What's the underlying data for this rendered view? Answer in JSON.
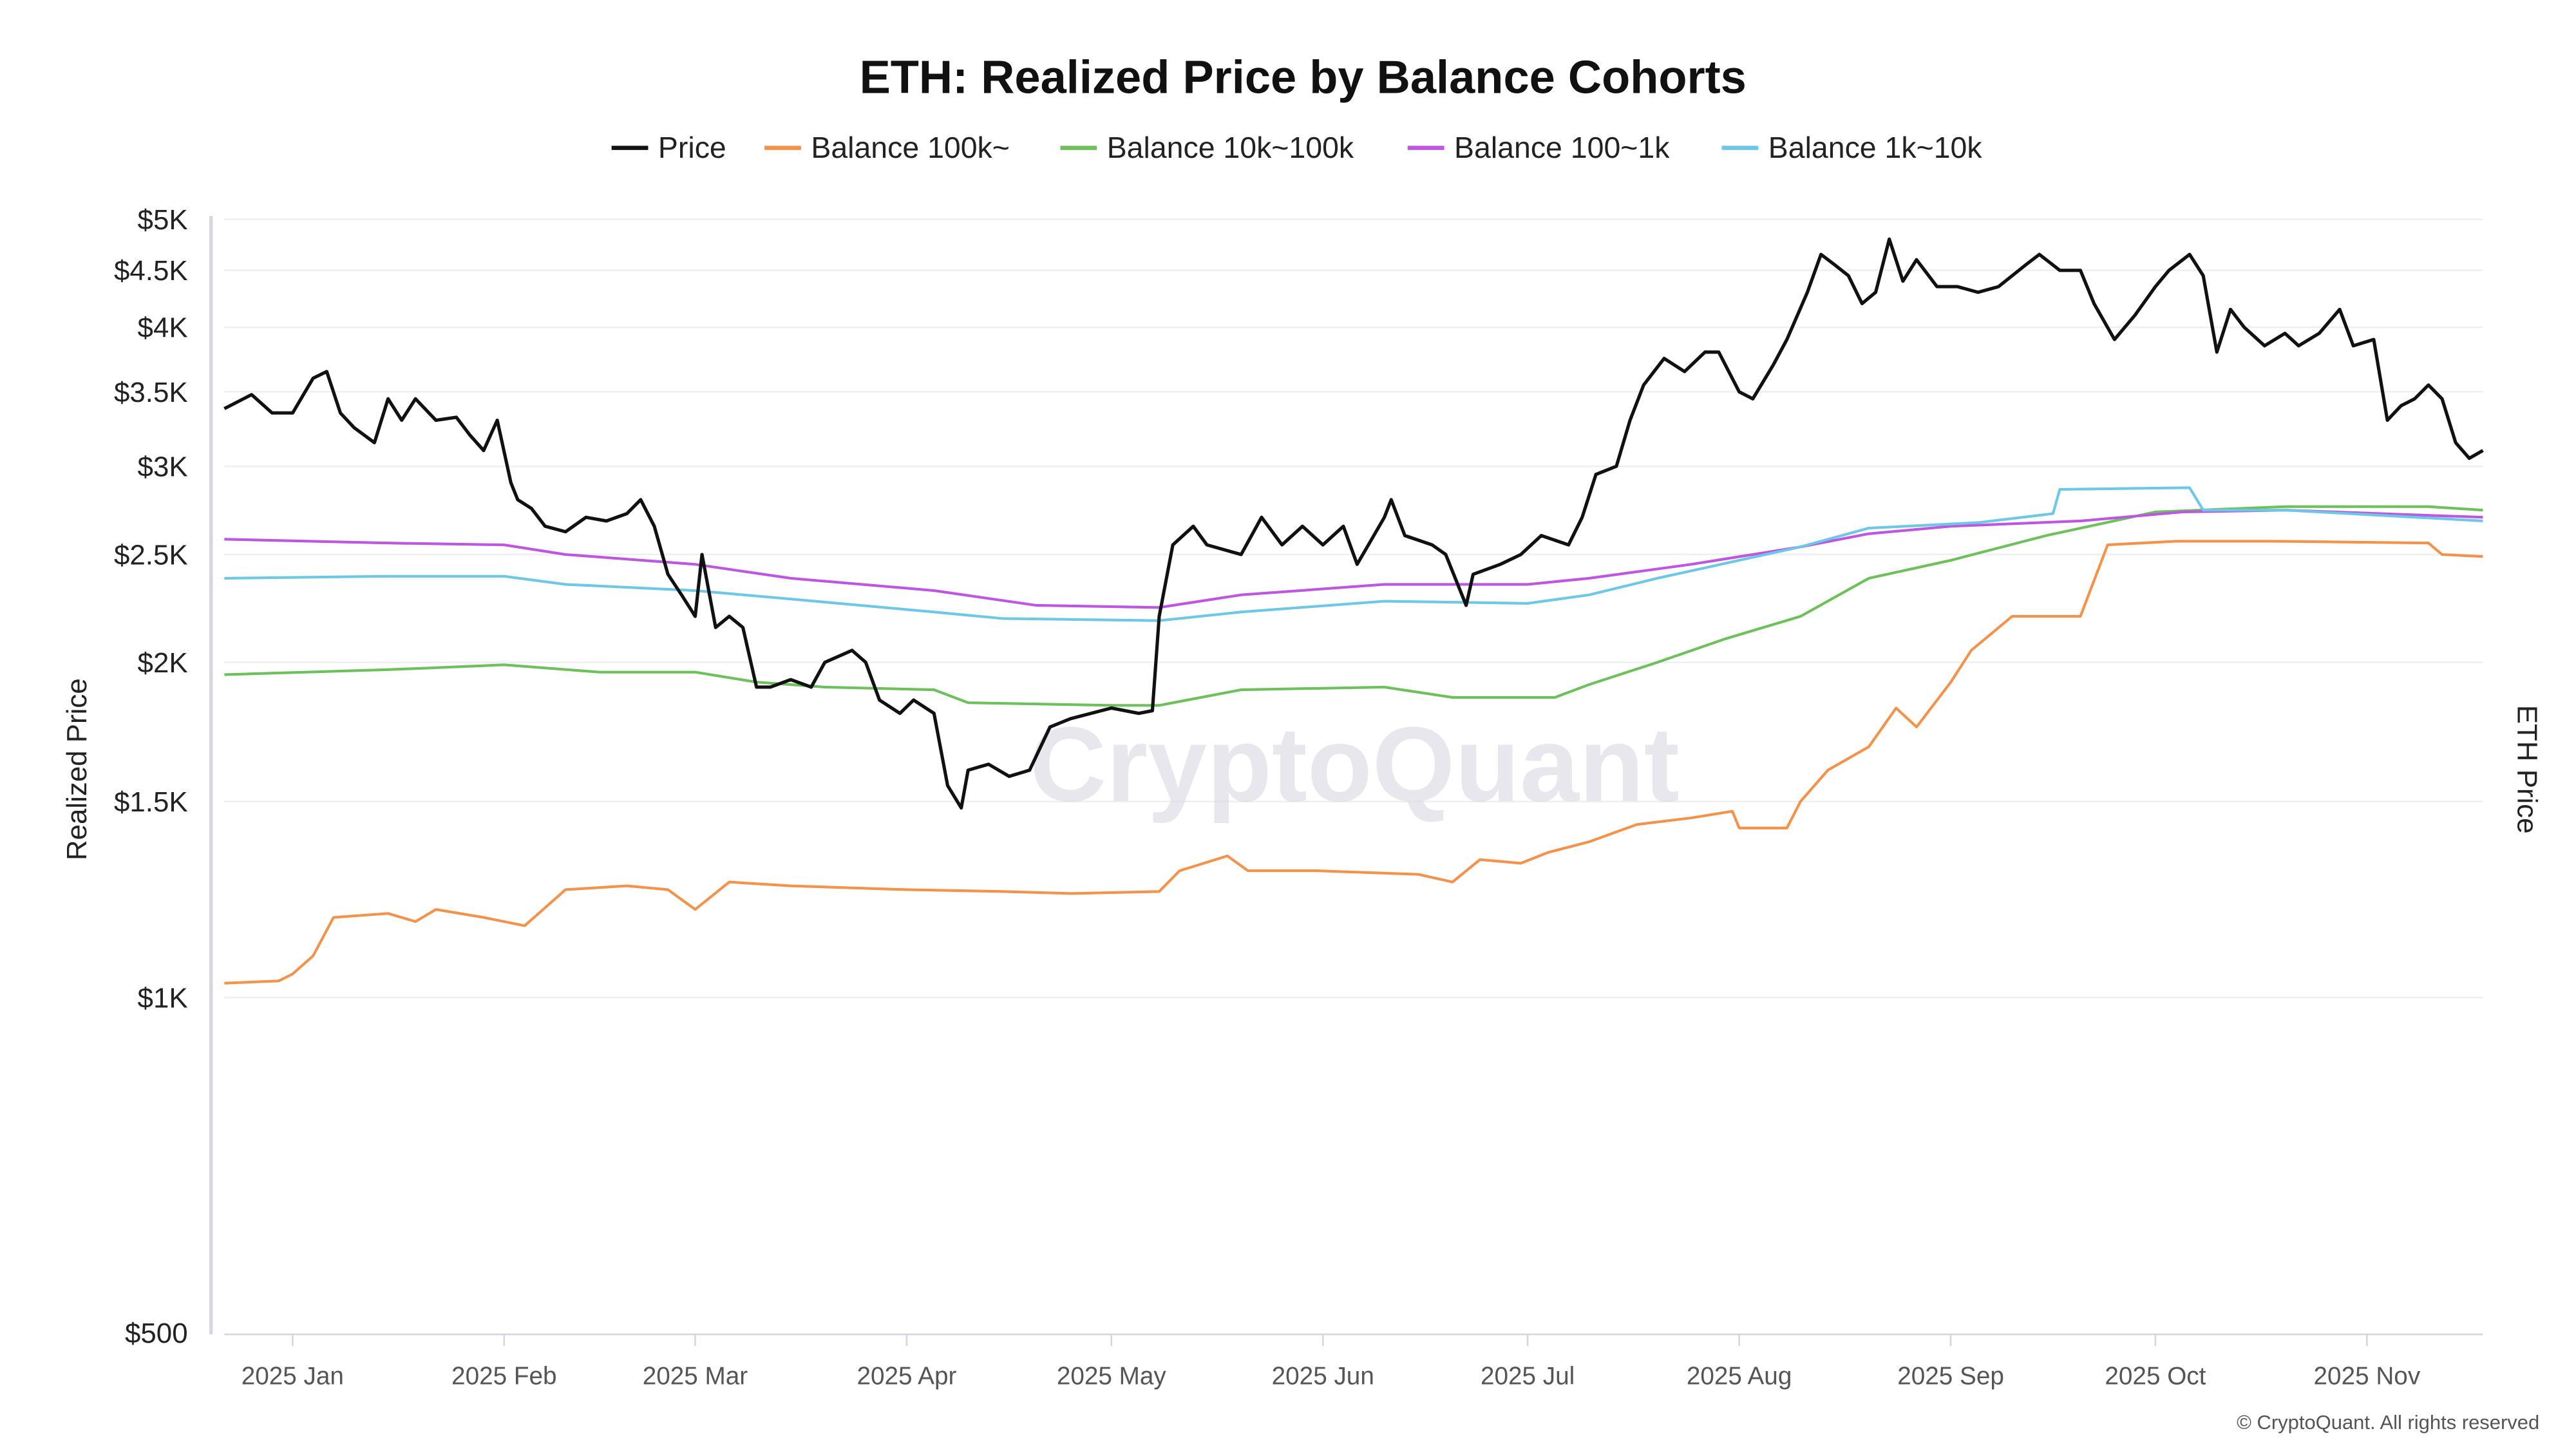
{
  "chart_data": {
    "type": "line",
    "title": "ETH: Realized Price by Balance Cohorts",
    "ylabel": "Realized Price",
    "y2label": "ETH Price",
    "yscale": "log",
    "ylim": [
      500,
      5000
    ],
    "xlim": [
      "2024-12-22",
      "2025-11-18"
    ],
    "grid": true,
    "legend_position": "top",
    "y_ticks": [
      {
        "value": 5000,
        "label": "$5K"
      },
      {
        "value": 4500,
        "label": "$4.5K"
      },
      {
        "value": 4000,
        "label": "$4K"
      },
      {
        "value": 3500,
        "label": "$3.5K"
      },
      {
        "value": 3000,
        "label": "$3K"
      },
      {
        "value": 2500,
        "label": "$2.5K"
      },
      {
        "value": 2000,
        "label": "$2K"
      },
      {
        "value": 1500,
        "label": "$1.5K"
      },
      {
        "value": 1000,
        "label": "$1K"
      },
      {
        "value": 500,
        "label": "$500"
      }
    ],
    "x_ticks": [
      {
        "value": "2025-01-01",
        "label": "2025 Jan"
      },
      {
        "value": "2025-02-01",
        "label": "2025 Feb"
      },
      {
        "value": "2025-03-01",
        "label": "2025 Mar"
      },
      {
        "value": "2025-04-01",
        "label": "2025 Apr"
      },
      {
        "value": "2025-05-01",
        "label": "2025 May"
      },
      {
        "value": "2025-06-01",
        "label": "2025 Jun"
      },
      {
        "value": "2025-07-01",
        "label": "2025 Jul"
      },
      {
        "value": "2025-08-01",
        "label": "2025 Aug"
      },
      {
        "value": "2025-09-01",
        "label": "2025 Sep"
      },
      {
        "value": "2025-10-01",
        "label": "2025 Oct"
      },
      {
        "value": "2025-11-01",
        "label": "2025 Nov"
      }
    ],
    "series": [
      {
        "name": "Price",
        "color": "#111111",
        "width": 2,
        "points": [
          [
            "2024-12-22",
            3380
          ],
          [
            "2024-12-26",
            3480
          ],
          [
            "2024-12-29",
            3350
          ],
          [
            "2025-01-01",
            3350
          ],
          [
            "2025-01-04",
            3600
          ],
          [
            "2025-01-06",
            3650
          ],
          [
            "2025-01-08",
            3350
          ],
          [
            "2025-01-10",
            3250
          ],
          [
            "2025-01-13",
            3150
          ],
          [
            "2025-01-15",
            3450
          ],
          [
            "2025-01-17",
            3300
          ],
          [
            "2025-01-19",
            3450
          ],
          [
            "2025-01-22",
            3300
          ],
          [
            "2025-01-25",
            3320
          ],
          [
            "2025-01-27",
            3200
          ],
          [
            "2025-01-29",
            3100
          ],
          [
            "2025-01-31",
            3300
          ],
          [
            "2025-02-02",
            2900
          ],
          [
            "2025-02-03",
            2800
          ],
          [
            "2025-02-05",
            2750
          ],
          [
            "2025-02-07",
            2650
          ],
          [
            "2025-02-10",
            2620
          ],
          [
            "2025-02-13",
            2700
          ],
          [
            "2025-02-16",
            2680
          ],
          [
            "2025-02-19",
            2720
          ],
          [
            "2025-02-21",
            2800
          ],
          [
            "2025-02-23",
            2650
          ],
          [
            "2025-02-25",
            2400
          ],
          [
            "2025-02-27",
            2300
          ],
          [
            "2025-03-01",
            2200
          ],
          [
            "2025-03-02",
            2500
          ],
          [
            "2025-03-04",
            2150
          ],
          [
            "2025-03-06",
            2200
          ],
          [
            "2025-03-08",
            2150
          ],
          [
            "2025-03-10",
            1900
          ],
          [
            "2025-03-12",
            1900
          ],
          [
            "2025-03-15",
            1930
          ],
          [
            "2025-03-18",
            1900
          ],
          [
            "2025-03-20",
            2000
          ],
          [
            "2025-03-24",
            2050
          ],
          [
            "2025-03-26",
            2000
          ],
          [
            "2025-03-28",
            1850
          ],
          [
            "2025-03-31",
            1800
          ],
          [
            "2025-04-02",
            1850
          ],
          [
            "2025-04-05",
            1800
          ],
          [
            "2025-04-07",
            1550
          ],
          [
            "2025-04-09",
            1480
          ],
          [
            "2025-04-10",
            1600
          ],
          [
            "2025-04-13",
            1620
          ],
          [
            "2025-04-16",
            1580
          ],
          [
            "2025-04-19",
            1600
          ],
          [
            "2025-04-22",
            1750
          ],
          [
            "2025-04-25",
            1780
          ],
          [
            "2025-04-28",
            1800
          ],
          [
            "2025-05-01",
            1820
          ],
          [
            "2025-05-05",
            1800
          ],
          [
            "2025-05-07",
            1810
          ],
          [
            "2025-05-08",
            2200
          ],
          [
            "2025-05-10",
            2550
          ],
          [
            "2025-05-13",
            2650
          ],
          [
            "2025-05-15",
            2550
          ],
          [
            "2025-05-20",
            2500
          ],
          [
            "2025-05-23",
            2700
          ],
          [
            "2025-05-26",
            2550
          ],
          [
            "2025-05-29",
            2650
          ],
          [
            "2025-06-01",
            2550
          ],
          [
            "2025-06-04",
            2650
          ],
          [
            "2025-06-06",
            2450
          ],
          [
            "2025-06-10",
            2700
          ],
          [
            "2025-06-11",
            2800
          ],
          [
            "2025-06-13",
            2600
          ],
          [
            "2025-06-17",
            2550
          ],
          [
            "2025-06-19",
            2500
          ],
          [
            "2025-06-22",
            2250
          ],
          [
            "2025-06-23",
            2400
          ],
          [
            "2025-06-27",
            2450
          ],
          [
            "2025-06-30",
            2500
          ],
          [
            "2025-07-03",
            2600
          ],
          [
            "2025-07-07",
            2550
          ],
          [
            "2025-07-09",
            2700
          ],
          [
            "2025-07-11",
            2950
          ],
          [
            "2025-07-14",
            3000
          ],
          [
            "2025-07-16",
            3300
          ],
          [
            "2025-07-18",
            3550
          ],
          [
            "2025-07-21",
            3750
          ],
          [
            "2025-07-24",
            3650
          ],
          [
            "2025-07-27",
            3800
          ],
          [
            "2025-07-29",
            3800
          ],
          [
            "2025-08-01",
            3500
          ],
          [
            "2025-08-03",
            3450
          ],
          [
            "2025-08-06",
            3700
          ],
          [
            "2025-08-08",
            3900
          ],
          [
            "2025-08-11",
            4300
          ],
          [
            "2025-08-13",
            4650
          ],
          [
            "2025-08-15",
            4550
          ],
          [
            "2025-08-17",
            4450
          ],
          [
            "2025-08-19",
            4200
          ],
          [
            "2025-08-21",
            4300
          ],
          [
            "2025-08-23",
            4800
          ],
          [
            "2025-08-25",
            4400
          ],
          [
            "2025-08-27",
            4600
          ],
          [
            "2025-08-30",
            4350
          ],
          [
            "2025-09-02",
            4350
          ],
          [
            "2025-09-05",
            4300
          ],
          [
            "2025-09-08",
            4350
          ],
          [
            "2025-09-12",
            4550
          ],
          [
            "2025-09-14",
            4650
          ],
          [
            "2025-09-17",
            4500
          ],
          [
            "2025-09-20",
            4500
          ],
          [
            "2025-09-22",
            4200
          ],
          [
            "2025-09-25",
            3900
          ],
          [
            "2025-09-28",
            4100
          ],
          [
            "2025-10-01",
            4350
          ],
          [
            "2025-10-03",
            4500
          ],
          [
            "2025-10-06",
            4650
          ],
          [
            "2025-10-08",
            4450
          ],
          [
            "2025-10-10",
            3800
          ],
          [
            "2025-10-12",
            4150
          ],
          [
            "2025-10-14",
            4000
          ],
          [
            "2025-10-17",
            3850
          ],
          [
            "2025-10-20",
            3950
          ],
          [
            "2025-10-22",
            3850
          ],
          [
            "2025-10-25",
            3950
          ],
          [
            "2025-10-28",
            4150
          ],
          [
            "2025-10-30",
            3850
          ],
          [
            "2025-11-02",
            3900
          ],
          [
            "2025-11-04",
            3300
          ],
          [
            "2025-11-06",
            3400
          ],
          [
            "2025-11-08",
            3450
          ],
          [
            "2025-11-10",
            3550
          ],
          [
            "2025-11-12",
            3450
          ],
          [
            "2025-11-14",
            3150
          ],
          [
            "2025-11-16",
            3050
          ],
          [
            "2025-11-18",
            3100
          ]
        ]
      },
      {
        "name": "Balance 100k~",
        "color": "#f4924a",
        "width": 1.6,
        "points": [
          [
            "2024-12-22",
            1030
          ],
          [
            "2024-12-30",
            1035
          ],
          [
            "2025-01-01",
            1050
          ],
          [
            "2025-01-04",
            1090
          ],
          [
            "2025-01-07",
            1180
          ],
          [
            "2025-01-15",
            1190
          ],
          [
            "2025-01-19",
            1170
          ],
          [
            "2025-01-22",
            1200
          ],
          [
            "2025-01-29",
            1180
          ],
          [
            "2025-02-04",
            1160
          ],
          [
            "2025-02-10",
            1250
          ],
          [
            "2025-02-19",
            1260
          ],
          [
            "2025-02-25",
            1250
          ],
          [
            "2025-03-01",
            1200
          ],
          [
            "2025-03-06",
            1270
          ],
          [
            "2025-03-15",
            1260
          ],
          [
            "2025-04-01",
            1250
          ],
          [
            "2025-04-15",
            1245
          ],
          [
            "2025-04-25",
            1240
          ],
          [
            "2025-05-08",
            1245
          ],
          [
            "2025-05-11",
            1300
          ],
          [
            "2025-05-18",
            1340
          ],
          [
            "2025-05-21",
            1300
          ],
          [
            "2025-05-31",
            1300
          ],
          [
            "2025-06-15",
            1290
          ],
          [
            "2025-06-20",
            1270
          ],
          [
            "2025-06-24",
            1330
          ],
          [
            "2025-06-30",
            1320
          ],
          [
            "2025-07-04",
            1350
          ],
          [
            "2025-07-10",
            1380
          ],
          [
            "2025-07-17",
            1430
          ],
          [
            "2025-07-25",
            1450
          ],
          [
            "2025-07-31",
            1470
          ],
          [
            "2025-08-01",
            1420
          ],
          [
            "2025-08-08",
            1420
          ],
          [
            "2025-08-10",
            1500
          ],
          [
            "2025-08-14",
            1600
          ],
          [
            "2025-08-20",
            1680
          ],
          [
            "2025-08-24",
            1820
          ],
          [
            "2025-08-27",
            1750
          ],
          [
            "2025-09-01",
            1920
          ],
          [
            "2025-09-04",
            2050
          ],
          [
            "2025-09-10",
            2200
          ],
          [
            "2025-09-20",
            2200
          ],
          [
            "2025-09-24",
            2550
          ],
          [
            "2025-10-04",
            2570
          ],
          [
            "2025-10-18",
            2570
          ],
          [
            "2025-11-10",
            2560
          ],
          [
            "2025-11-12",
            2500
          ],
          [
            "2025-11-18",
            2490
          ]
        ]
      },
      {
        "name": "Balance 10k~100k",
        "color": "#6cc15a",
        "width": 1.6,
        "points": [
          [
            "2024-12-22",
            1950
          ],
          [
            "2025-01-15",
            1970
          ],
          [
            "2025-02-01",
            1990
          ],
          [
            "2025-02-15",
            1960
          ],
          [
            "2025-03-01",
            1960
          ],
          [
            "2025-03-10",
            1920
          ],
          [
            "2025-03-20",
            1900
          ],
          [
            "2025-04-05",
            1890
          ],
          [
            "2025-04-10",
            1840
          ],
          [
            "2025-05-01",
            1830
          ],
          [
            "2025-05-08",
            1830
          ],
          [
            "2025-05-20",
            1890
          ],
          [
            "2025-06-10",
            1900
          ],
          [
            "2025-06-20",
            1860
          ],
          [
            "2025-07-05",
            1860
          ],
          [
            "2025-07-10",
            1910
          ],
          [
            "2025-07-20",
            2000
          ],
          [
            "2025-07-30",
            2100
          ],
          [
            "2025-08-10",
            2200
          ],
          [
            "2025-08-20",
            2380
          ],
          [
            "2025-09-01",
            2470
          ],
          [
            "2025-09-15",
            2600
          ],
          [
            "2025-10-01",
            2730
          ],
          [
            "2025-10-20",
            2760
          ],
          [
            "2025-11-10",
            2760
          ],
          [
            "2025-11-18",
            2740
          ]
        ]
      },
      {
        "name": "Balance 100~1k",
        "color": "#bf55e3",
        "width": 1.6,
        "points": [
          [
            "2024-12-22",
            2580
          ],
          [
            "2025-01-15",
            2560
          ],
          [
            "2025-02-01",
            2550
          ],
          [
            "2025-02-10",
            2500
          ],
          [
            "2025-03-01",
            2450
          ],
          [
            "2025-03-15",
            2380
          ],
          [
            "2025-04-05",
            2320
          ],
          [
            "2025-04-20",
            2250
          ],
          [
            "2025-05-08",
            2240
          ],
          [
            "2025-05-20",
            2300
          ],
          [
            "2025-06-10",
            2350
          ],
          [
            "2025-07-01",
            2350
          ],
          [
            "2025-07-10",
            2380
          ],
          [
            "2025-07-25",
            2450
          ],
          [
            "2025-08-10",
            2540
          ],
          [
            "2025-08-20",
            2610
          ],
          [
            "2025-09-01",
            2650
          ],
          [
            "2025-09-20",
            2680
          ],
          [
            "2025-10-05",
            2730
          ],
          [
            "2025-10-20",
            2740
          ],
          [
            "2025-11-18",
            2700
          ]
        ]
      },
      {
        "name": "Balance 1k~10k",
        "color": "#6cc8e6",
        "width": 1.6,
        "points": [
          [
            "2024-12-22",
            2380
          ],
          [
            "2025-01-15",
            2390
          ],
          [
            "2025-02-01",
            2390
          ],
          [
            "2025-02-10",
            2350
          ],
          [
            "2025-03-01",
            2320
          ],
          [
            "2025-03-15",
            2280
          ],
          [
            "2025-04-05",
            2220
          ],
          [
            "2025-04-15",
            2190
          ],
          [
            "2025-05-08",
            2180
          ],
          [
            "2025-05-20",
            2220
          ],
          [
            "2025-06-10",
            2270
          ],
          [
            "2025-07-01",
            2260
          ],
          [
            "2025-07-10",
            2300
          ],
          [
            "2025-07-20",
            2380
          ],
          [
            "2025-08-10",
            2540
          ],
          [
            "2025-08-20",
            2640
          ],
          [
            "2025-09-05",
            2670
          ],
          [
            "2025-09-16",
            2720
          ],
          [
            "2025-09-17",
            2860
          ],
          [
            "2025-10-06",
            2870
          ],
          [
            "2025-10-08",
            2740
          ],
          [
            "2025-10-20",
            2740
          ],
          [
            "2025-11-18",
            2680
          ]
        ]
      }
    ]
  },
  "watermark": "CryptoQuant",
  "copyright": "© CryptoQuant. All rights reserved"
}
